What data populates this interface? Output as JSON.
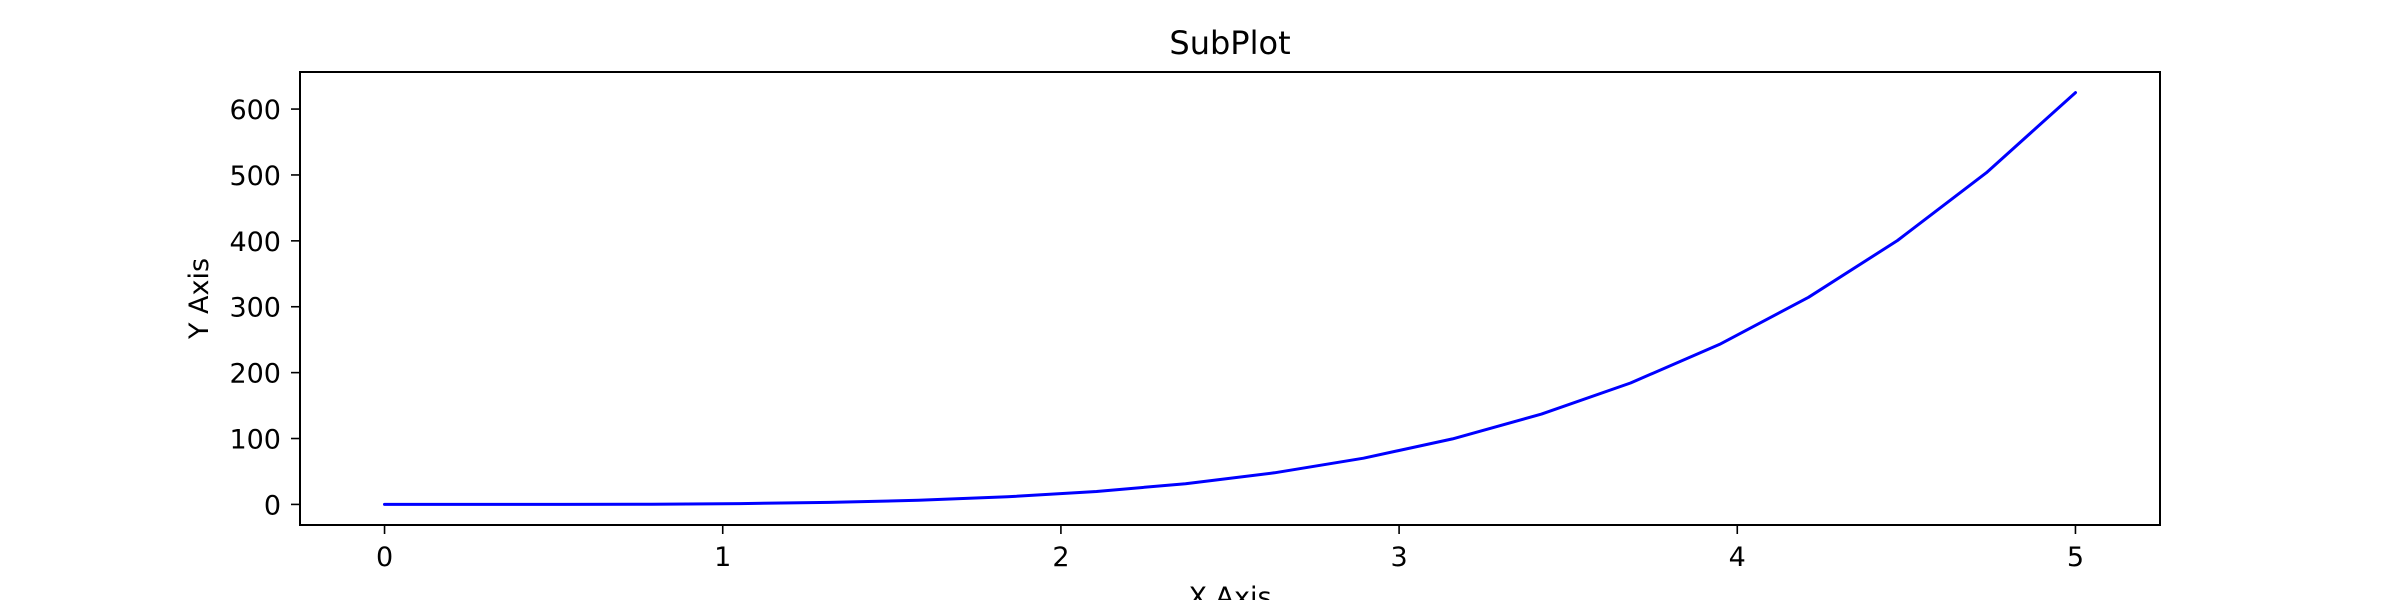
{
  "chart_data": {
    "type": "line",
    "title": "SubPlot",
    "xlabel": "X Axis",
    "ylabel": "Y Axis",
    "xlim": [
      -0.25,
      5.25
    ],
    "ylim": [
      -31.25,
      656.25
    ],
    "xticks": [
      0,
      1,
      2,
      3,
      4,
      5
    ],
    "yticks": [
      0,
      100,
      200,
      300,
      400,
      500,
      600
    ],
    "grid": false,
    "legend": "none",
    "line_color": "#0000ff",
    "series": [
      {
        "x": [
          0,
          0.2632,
          0.5263,
          0.7895,
          1.0526,
          1.3158,
          1.5789,
          1.8421,
          2.1053,
          2.3684,
          2.6316,
          2.8947,
          3.1579,
          3.4211,
          3.6842,
          3.9474,
          4.2105,
          4.4737,
          4.7368,
          5.0
        ],
        "values": [
          0,
          0.005,
          0.077,
          0.39,
          1.23,
          3.0,
          6.2,
          11.5,
          19.6,
          31.5,
          48.0,
          70.2,
          99.4,
          137.0,
          184.2,
          242.8,
          314.3,
          400.6,
          503.4,
          625.0
        ]
      }
    ]
  }
}
